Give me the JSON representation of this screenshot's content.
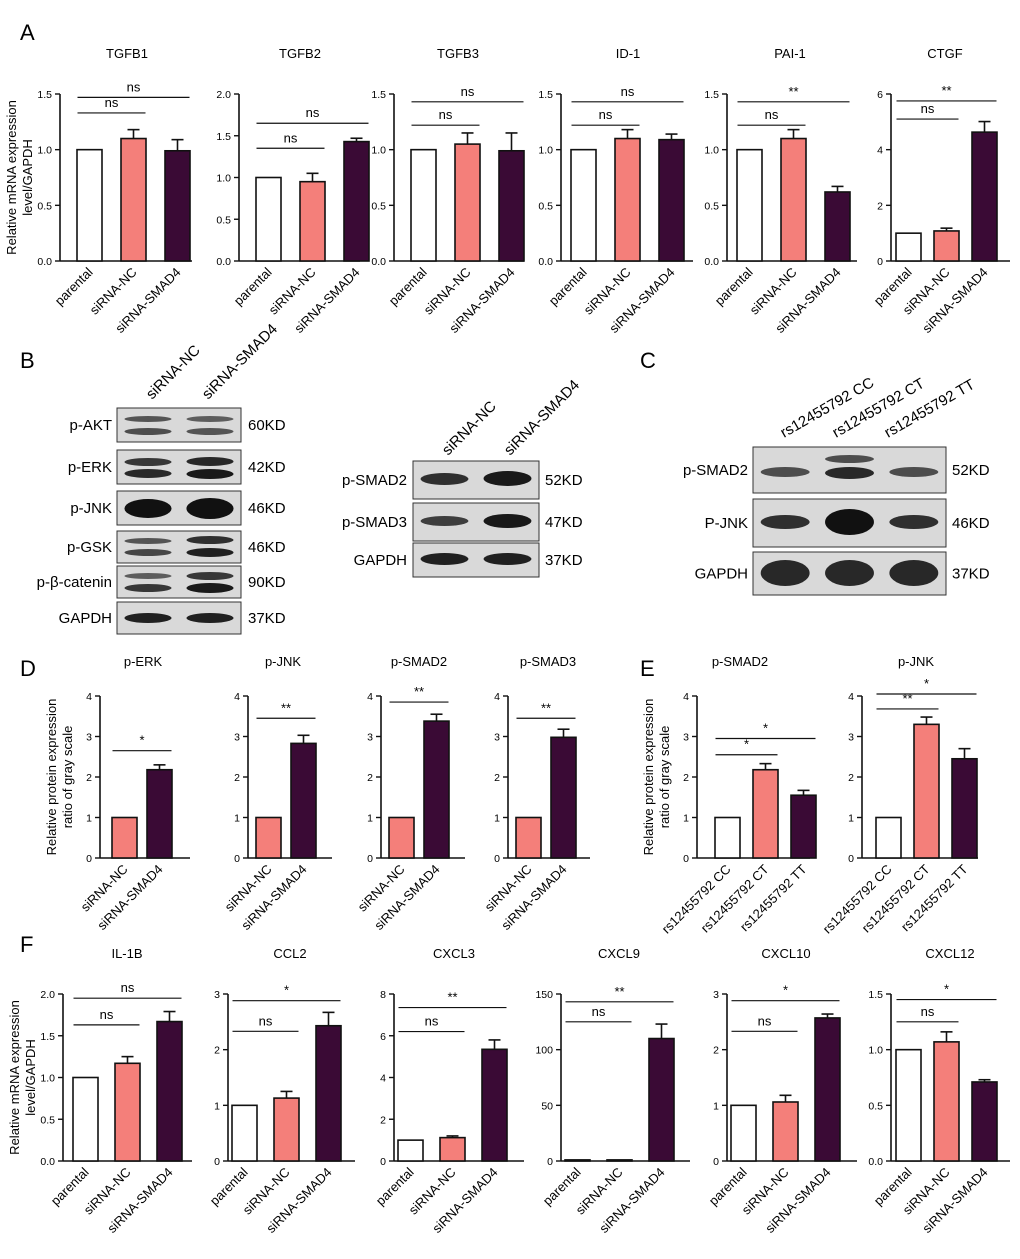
{
  "panel_labels": [
    "A",
    "B",
    "C",
    "D",
    "E",
    "F"
  ],
  "colors": {
    "parental": "#ffffff",
    "nc": "#f47f7a",
    "smad4": "#3a0a35",
    "axis": "#111111"
  },
  "chart_data": [
    {
      "id": "A1",
      "type": "bar",
      "title": "TGFB1",
      "ylabel": [
        "Relative mRNA expression",
        "level/GAPDH"
      ],
      "categories": [
        "parental",
        "siRNA-NC",
        "siRNA-SMAD4"
      ],
      "values": [
        1.0,
        1.1,
        0.99
      ],
      "errors": [
        0,
        0.08,
        0.1
      ],
      "ylim": [
        0,
        1.5
      ],
      "ticks": [
        "0.0",
        "0.5",
        "1.0",
        "1.5"
      ],
      "tick_values": [
        0,
        0.5,
        1.0,
        1.5
      ],
      "sig": [
        {
          "from": 0,
          "to": 1,
          "label": "ns",
          "y": 1.33
        },
        {
          "from": 0,
          "to": 2,
          "label": "ns",
          "y": 1.47
        }
      ]
    },
    {
      "id": "A2",
      "type": "bar",
      "title": "TGFB2",
      "categories": [
        "parental",
        "siRNA-NC",
        "siRNA-SMAD4"
      ],
      "values": [
        1.0,
        0.95,
        1.43
      ],
      "errors": [
        0,
        0.1,
        0.04
      ],
      "ylim": [
        0,
        2.0
      ],
      "ticks": [
        "0.0",
        "0.5",
        "1.0",
        "1.5",
        "2.0"
      ],
      "tick_values": [
        0,
        0.5,
        1.0,
        1.5,
        2.0
      ],
      "sig": [
        {
          "from": 0,
          "to": 1,
          "label": "ns",
          "y": 1.35
        },
        {
          "from": 0,
          "to": 2,
          "label": "ns",
          "y": 1.65
        }
      ]
    },
    {
      "id": "A3",
      "type": "bar",
      "title": "TGFB3",
      "categories": [
        "parental",
        "siRNA-NC",
        "siRNA-SMAD4"
      ],
      "values": [
        1.0,
        1.05,
        0.99
      ],
      "errors": [
        0,
        0.1,
        0.16
      ],
      "ylim": [
        0,
        1.5
      ],
      "ticks": [
        "0.0",
        "0.5",
        "1.0",
        "1.5"
      ],
      "tick_values": [
        0,
        0.5,
        1.0,
        1.5
      ],
      "sig": [
        {
          "from": 0,
          "to": 1,
          "label": "ns",
          "y": 1.22
        },
        {
          "from": 0,
          "to": 2,
          "label": "ns",
          "y": 1.43
        }
      ]
    },
    {
      "id": "A4",
      "type": "bar",
      "title": "ID-1",
      "categories": [
        "parental",
        "siRNA-NC",
        "siRNA-SMAD4"
      ],
      "values": [
        1.0,
        1.1,
        1.09
      ],
      "errors": [
        0,
        0.08,
        0.05
      ],
      "ylim": [
        0,
        1.5
      ],
      "ticks": [
        "0.0",
        "0.5",
        "1.0",
        "1.5"
      ],
      "tick_values": [
        0,
        0.5,
        1.0,
        1.5
      ],
      "sig": [
        {
          "from": 0,
          "to": 1,
          "label": "ns",
          "y": 1.22
        },
        {
          "from": 0,
          "to": 2,
          "label": "ns",
          "y": 1.43
        }
      ]
    },
    {
      "id": "A5",
      "type": "bar",
      "title": "PAI-1",
      "categories": [
        "parental",
        "siRNA-NC",
        "siRNA-SMAD4"
      ],
      "values": [
        1.0,
        1.1,
        0.62
      ],
      "errors": [
        0,
        0.08,
        0.05
      ],
      "ylim": [
        0,
        1.5
      ],
      "ticks": [
        "0.0",
        "0.5",
        "1.0",
        "1.5"
      ],
      "tick_values": [
        0,
        0.5,
        1.0,
        1.5
      ],
      "sig": [
        {
          "from": 0,
          "to": 1,
          "label": "ns",
          "y": 1.22
        },
        {
          "from": 0,
          "to": 2,
          "label": "**",
          "y": 1.43
        }
      ]
    },
    {
      "id": "A6",
      "type": "bar",
      "title": "CTGF",
      "categories": [
        "parental",
        "siRNA-NC",
        "siRNA-SMAD4"
      ],
      "values": [
        1.0,
        1.08,
        4.63
      ],
      "errors": [
        0,
        0.1,
        0.38
      ],
      "ylim": [
        0,
        6
      ],
      "ticks": [
        "0",
        "2",
        "4",
        "6"
      ],
      "tick_values": [
        0,
        2,
        4,
        6
      ],
      "sig": [
        {
          "from": 0,
          "to": 1,
          "label": "ns",
          "y": 5.1
        },
        {
          "from": 0,
          "to": 2,
          "label": "**",
          "y": 5.75
        }
      ]
    },
    {
      "id": "D1",
      "type": "bar",
      "title": "p-ERK",
      "ylabel": [
        "Relative protein expression",
        "ratio of gray scale"
      ],
      "categories": [
        "siRNA-NC",
        "siRNA-SMAD4"
      ],
      "values": [
        1.0,
        2.18
      ],
      "errors": [
        0,
        0.12
      ],
      "ylim": [
        0,
        4
      ],
      "ticks": [
        "0",
        "1",
        "2",
        "3",
        "4"
      ],
      "tick_values": [
        0,
        1,
        2,
        3,
        4
      ],
      "sig": [
        {
          "from": 0,
          "to": 1,
          "label": "*",
          "y": 2.65
        }
      ]
    },
    {
      "id": "D2",
      "type": "bar",
      "title": "p-JNK",
      "categories": [
        "siRNA-NC",
        "siRNA-SMAD4"
      ],
      "values": [
        1.0,
        2.83
      ],
      "errors": [
        0,
        0.2
      ],
      "ylim": [
        0,
        4
      ],
      "ticks": [
        "0",
        "1",
        "2",
        "3",
        "4"
      ],
      "tick_values": [
        0,
        1,
        2,
        3,
        4
      ],
      "sig": [
        {
          "from": 0,
          "to": 1,
          "label": "**",
          "y": 3.45
        }
      ]
    },
    {
      "id": "D3",
      "type": "bar",
      "title": "p-SMAD2",
      "categories": [
        "siRNA-NC",
        "siRNA-SMAD4"
      ],
      "values": [
        1.0,
        3.38
      ],
      "errors": [
        0,
        0.17
      ],
      "ylim": [
        0,
        4
      ],
      "ticks": [
        "0",
        "1",
        "2",
        "3",
        "4"
      ],
      "tick_values": [
        0,
        1,
        2,
        3,
        4
      ],
      "sig": [
        {
          "from": 0,
          "to": 1,
          "label": "**",
          "y": 3.85
        }
      ]
    },
    {
      "id": "D4",
      "type": "bar",
      "title": "p-SMAD3",
      "categories": [
        "siRNA-NC",
        "siRNA-SMAD4"
      ],
      "values": [
        1.0,
        2.98
      ],
      "errors": [
        0,
        0.2
      ],
      "ylim": [
        0,
        4
      ],
      "ticks": [
        "0",
        "1",
        "2",
        "3",
        "4"
      ],
      "tick_values": [
        0,
        1,
        2,
        3,
        4
      ],
      "sig": [
        {
          "from": 0,
          "to": 1,
          "label": "**",
          "y": 3.45
        }
      ]
    },
    {
      "id": "E1",
      "type": "bar",
      "title": "p-SMAD2",
      "ylabel": [
        "Relative protein expression",
        "ratio of gray scale"
      ],
      "categories": [
        "rs12455792 CC",
        "rs12455792 CT",
        "rs12455792 TT"
      ],
      "values": [
        1.0,
        2.18,
        1.55
      ],
      "errors": [
        0,
        0.15,
        0.12
      ],
      "ylim": [
        0,
        4
      ],
      "ticks": [
        "0",
        "1",
        "2",
        "3",
        "4"
      ],
      "tick_values": [
        0,
        1,
        2,
        3,
        4
      ],
      "sig": [
        {
          "from": 0,
          "to": 1,
          "label": "*",
          "y": 2.55
        },
        {
          "from": 0,
          "to": 2,
          "label": "*",
          "y": 2.95
        }
      ]
    },
    {
      "id": "E2",
      "type": "bar",
      "title": "p-JNK",
      "categories": [
        "rs12455792 CC",
        "rs12455792 CT",
        "rs12455792 TT"
      ],
      "values": [
        1.0,
        3.3,
        2.45
      ],
      "errors": [
        0,
        0.18,
        0.25
      ],
      "ylim": [
        0,
        4
      ],
      "ticks": [
        "0",
        "1",
        "2",
        "3",
        "4"
      ],
      "tick_values": [
        0,
        1,
        2,
        3,
        4
      ],
      "sig": [
        {
          "from": 0,
          "to": 1,
          "label": "**",
          "y": 3.68
        },
        {
          "from": 0,
          "to": 2,
          "label": "*",
          "y": 4.05
        }
      ]
    },
    {
      "id": "F1",
      "type": "bar",
      "title": "IL-1B",
      "ylabel": [
        "Relative mRNA expression",
        "level/GAPDH"
      ],
      "categories": [
        "parental",
        "siRNA-NC",
        "siRNA-SMAD4"
      ],
      "values": [
        1.0,
        1.17,
        1.67
      ],
      "errors": [
        0,
        0.08,
        0.12
      ],
      "ylim": [
        0,
        2.0
      ],
      "ticks": [
        "0.0",
        "0.5",
        "1.0",
        "1.5",
        "2.0"
      ],
      "tick_values": [
        0,
        0.5,
        1.0,
        1.5,
        2.0
      ],
      "sig": [
        {
          "from": 0,
          "to": 1,
          "label": "ns",
          "y": 1.63
        },
        {
          "from": 0,
          "to": 2,
          "label": "ns",
          "y": 1.95
        }
      ]
    },
    {
      "id": "F2",
      "type": "bar",
      "title": "CCL2",
      "categories": [
        "parental",
        "siRNA-NC",
        "siRNA-SMAD4"
      ],
      "values": [
        1.0,
        1.13,
        2.43
      ],
      "errors": [
        0,
        0.12,
        0.24
      ],
      "ylim": [
        0,
        3
      ],
      "ticks": [
        "0",
        "1",
        "2",
        "3"
      ],
      "tick_values": [
        0,
        1,
        2,
        3
      ],
      "sig": [
        {
          "from": 0,
          "to": 1,
          "label": "ns",
          "y": 2.33
        },
        {
          "from": 0,
          "to": 2,
          "label": "*",
          "y": 2.88
        }
      ]
    },
    {
      "id": "F3",
      "type": "bar",
      "title": "CXCL3",
      "categories": [
        "parental",
        "siRNA-NC",
        "siRNA-SMAD4"
      ],
      "values": [
        1.0,
        1.12,
        5.35
      ],
      "errors": [
        0,
        0.08,
        0.45
      ],
      "ylim": [
        0,
        8
      ],
      "ticks": [
        "0",
        "2",
        "4",
        "6",
        "8"
      ],
      "tick_values": [
        0,
        2,
        4,
        6,
        8
      ],
      "sig": [
        {
          "from": 0,
          "to": 1,
          "label": "ns",
          "y": 6.2
        },
        {
          "from": 0,
          "to": 2,
          "label": "**",
          "y": 7.35
        }
      ]
    },
    {
      "id": "F4",
      "type": "bar",
      "title": "CXCL9",
      "categories": [
        "parental",
        "siRNA-NC",
        "siRNA-SMAD4"
      ],
      "values": [
        1.0,
        1.0,
        110
      ],
      "errors": [
        0,
        0,
        13
      ],
      "ylim": [
        0,
        150
      ],
      "ticks": [
        "0",
        "50",
        "100",
        "150"
      ],
      "tick_values": [
        0,
        50,
        100,
        150
      ],
      "sig": [
        {
          "from": 0,
          "to": 1,
          "label": "ns",
          "y": 125
        },
        {
          "from": 0,
          "to": 2,
          "label": "**",
          "y": 143
        }
      ]
    },
    {
      "id": "F5",
      "type": "bar",
      "title": "CXCL10",
      "categories": [
        "parental",
        "siRNA-NC",
        "siRNA-SMAD4"
      ],
      "values": [
        1.0,
        1.06,
        2.57
      ],
      "errors": [
        0,
        0.12,
        0.07
      ],
      "ylim": [
        0,
        3
      ],
      "ticks": [
        "0",
        "1",
        "2",
        "3"
      ],
      "tick_values": [
        0,
        1,
        2,
        3
      ],
      "sig": [
        {
          "from": 0,
          "to": 1,
          "label": "ns",
          "y": 2.33
        },
        {
          "from": 0,
          "to": 2,
          "label": "*",
          "y": 2.88
        }
      ]
    },
    {
      "id": "F6",
      "type": "bar",
      "title": "CXCL12",
      "categories": [
        "parental",
        "siRNA-NC",
        "siRNA-SMAD4"
      ],
      "values": [
        1.0,
        1.07,
        0.71
      ],
      "errors": [
        0,
        0.09,
        0.02
      ],
      "ylim": [
        0,
        1.5
      ],
      "ticks": [
        "0.0",
        "0.5",
        "1.0",
        "1.5"
      ],
      "tick_values": [
        0,
        0.5,
        1.0,
        1.5
      ],
      "sig": [
        {
          "from": 0,
          "to": 1,
          "label": "ns",
          "y": 1.25
        },
        {
          "from": 0,
          "to": 2,
          "label": "*",
          "y": 1.45
        }
      ]
    }
  ],
  "western_blots": {
    "B_left": {
      "lanes": [
        "siRNA-NC",
        "siRNA-SMAD4"
      ],
      "rows": [
        {
          "label": "p-AKT",
          "kd": "60KD"
        },
        {
          "label": "p-ERK",
          "kd": "42KD"
        },
        {
          "label": "p-JNK",
          "kd": "46KD"
        },
        {
          "label": "p-GSK",
          "kd": "46KD"
        },
        {
          "label": "p-β-catenin",
          "kd": "90KD"
        },
        {
          "label": "GAPDH",
          "kd": "37KD"
        }
      ]
    },
    "B_right": {
      "lanes": [
        "siRNA-NC",
        "siRNA-SMAD4"
      ],
      "rows": [
        {
          "label": "p-SMAD2",
          "kd": "52KD"
        },
        {
          "label": "p-SMAD3",
          "kd": "47KD"
        },
        {
          "label": "GAPDH",
          "kd": "37KD"
        }
      ]
    },
    "C": {
      "lanes": [
        "rs12455792 CC",
        "rs12455792 CT",
        "rs12455792 TT"
      ],
      "rows": [
        {
          "label": "p-SMAD2",
          "kd": "52KD"
        },
        {
          "label": "P-JNK",
          "kd": "46KD"
        },
        {
          "label": "GAPDH",
          "kd": "37KD"
        }
      ]
    }
  }
}
